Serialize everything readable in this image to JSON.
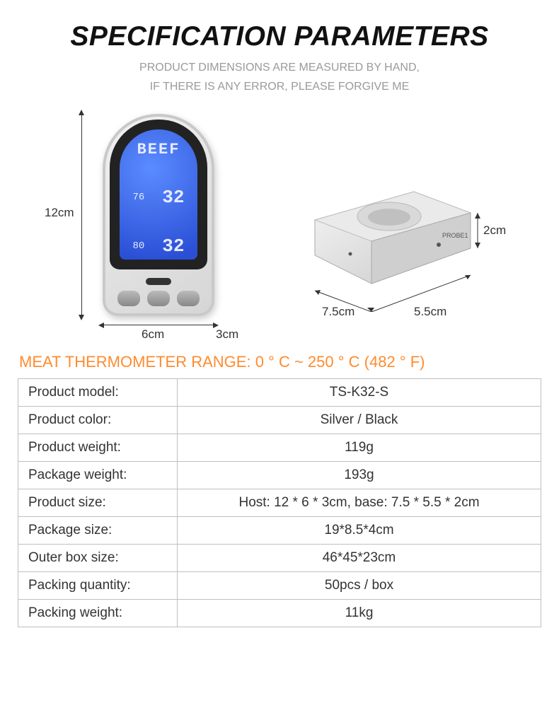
{
  "header": {
    "title": "SPECIFICATION PARAMETERS",
    "subtitle_line1": "PRODUCT DIMENSIONS ARE MEASURED BY HAND,",
    "subtitle_line2": "IF THERE IS ANY ERROR, PLEASE FORGIVE ME"
  },
  "diagram": {
    "host": {
      "lcd_top": "BEEF",
      "row1_left": "76",
      "row1_right": "32",
      "row2_left": "80",
      "row2_right": "32",
      "height_label": "12cm",
      "width_label": "6cm",
      "depth_label": "3cm"
    },
    "base": {
      "probe_label": "PROBE1",
      "width_label": "7.5cm",
      "depth_label": "5.5cm",
      "height_label": "2cm"
    },
    "colors": {
      "lcd_start": "#5b8cff",
      "lcd_end": "#2a4fd6",
      "device_light": "#f2f2f2",
      "device_dark": "#d5d5d5",
      "line": "#333333"
    }
  },
  "range_title": "MEAT THERMOMETER RANGE: 0 ° C ~ 250 ° C (482 ° F)",
  "spec_table": {
    "rows": [
      {
        "key": "Product model:",
        "val": "TS-K32-S"
      },
      {
        "key": "Product color:",
        "val": "Silver / Black"
      },
      {
        "key": "Product weight:",
        "val": "119g"
      },
      {
        "key": "Package weight:",
        "val": "193g"
      },
      {
        "key": "Product size:",
        "val": "Host: 12 * 6 * 3cm, base: 7.5 * 5.5 * 2cm"
      },
      {
        "key": "Package size:",
        "val": "19*8.5*4cm"
      },
      {
        "key": "Outer box size:",
        "val": "46*45*23cm"
      },
      {
        "key": "Packing quantity:",
        "val": "50pcs / box"
      },
      {
        "key": "Packing weight:",
        "val": "11kg"
      }
    ],
    "border_color": "#bfbfbf",
    "font_size": 19
  },
  "range_color": "#ff8b2e"
}
